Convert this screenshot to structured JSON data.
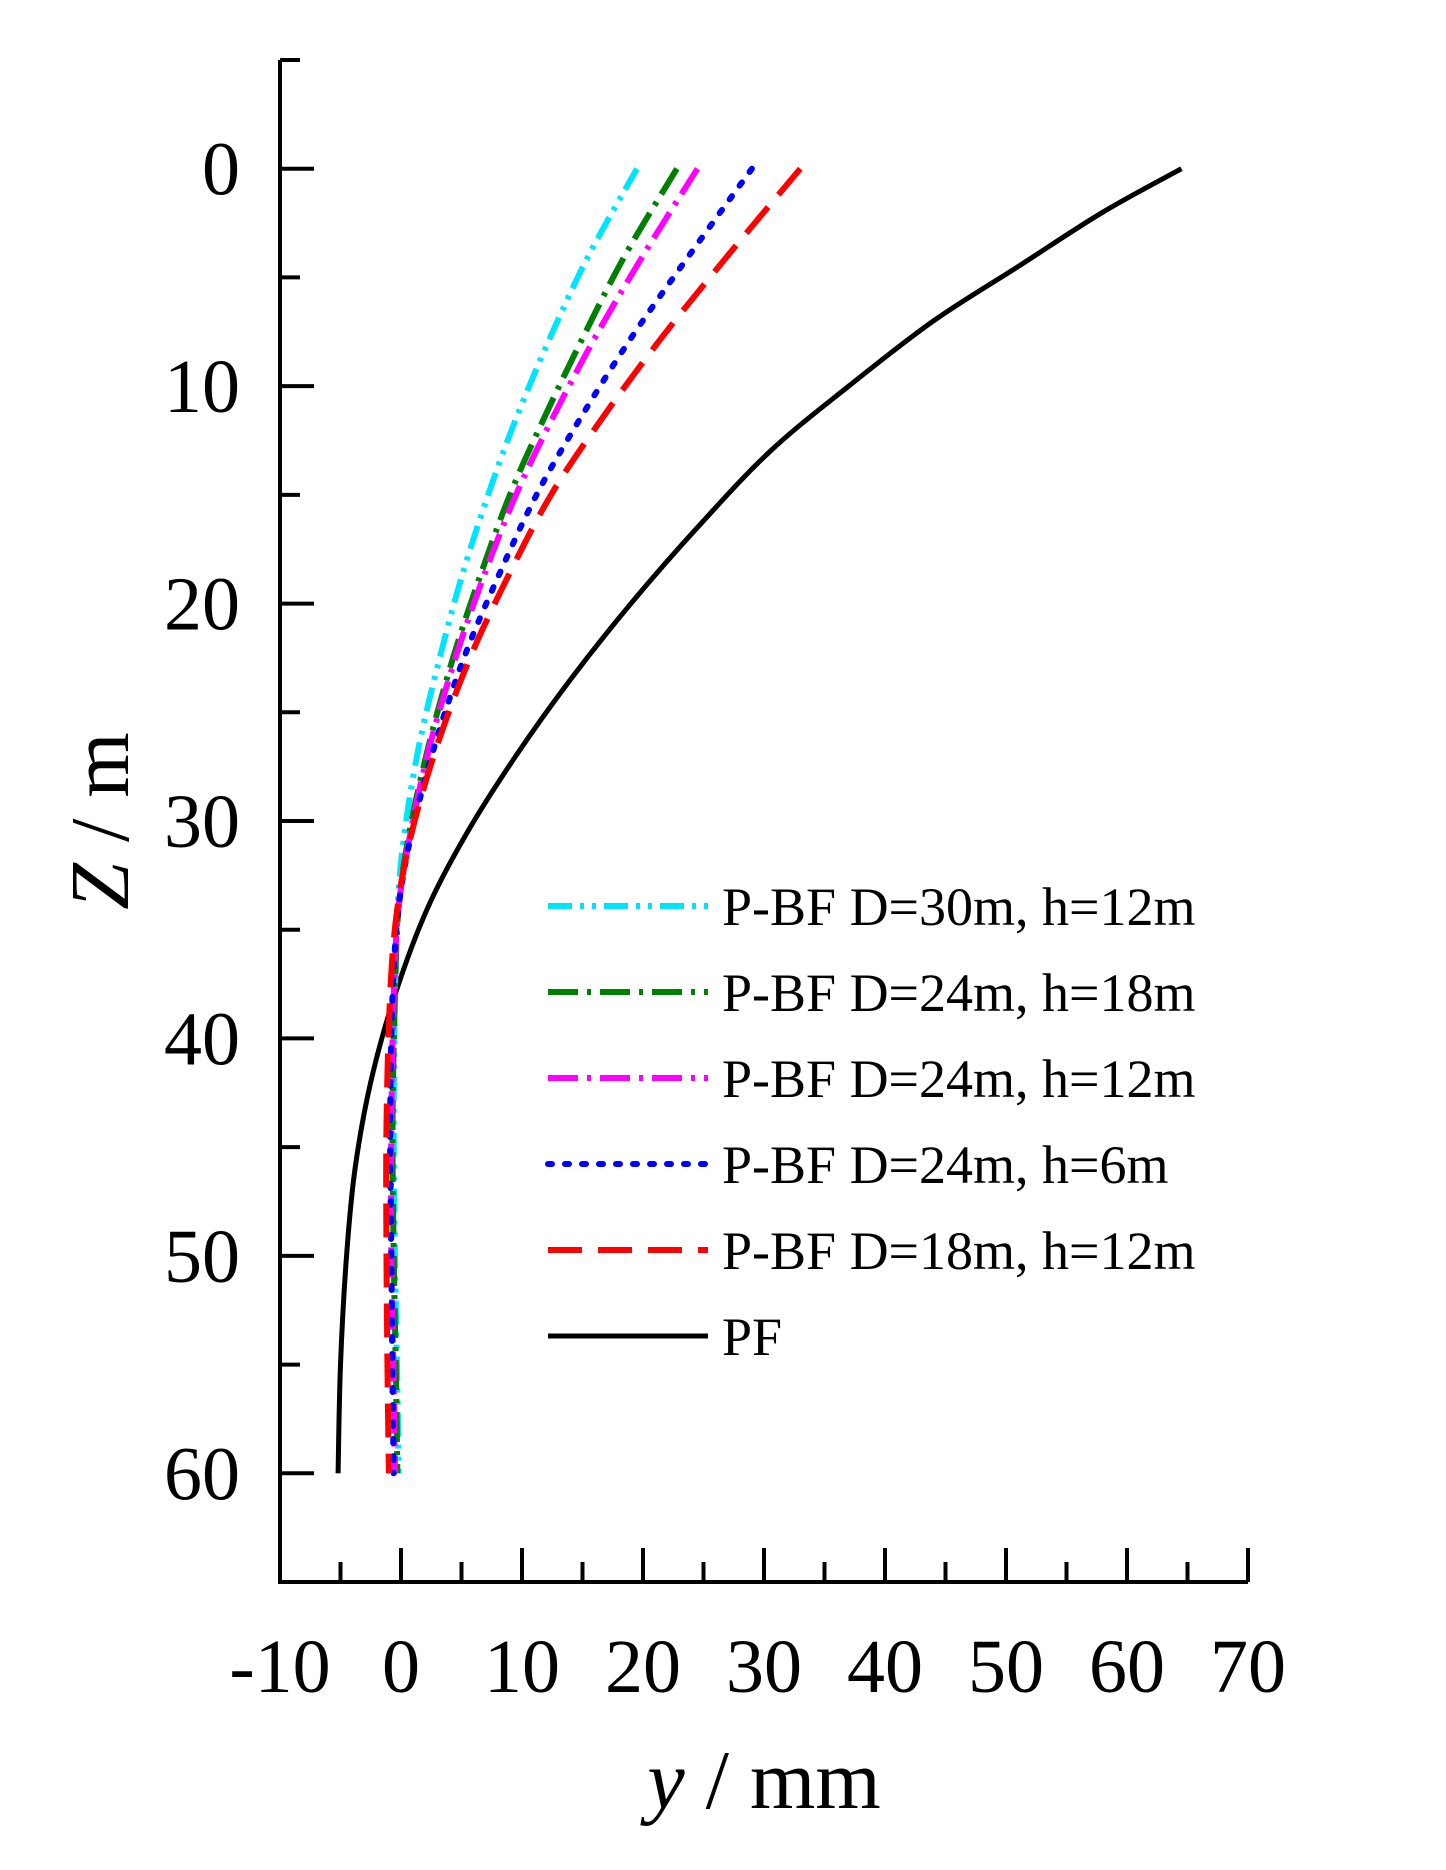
{
  "chart_data": {
    "type": "line",
    "title": "",
    "xlabel": {
      "var": "y",
      "unit": "/ mm"
    },
    "ylabel": {
      "var": "Z",
      "unit": "/ m"
    },
    "xlim": [
      -10,
      70
    ],
    "ylim": [
      65,
      -5
    ],
    "y_inverted": true,
    "grid": false,
    "legend_position": "right-middle",
    "x_ticks": [
      -10,
      0,
      10,
      20,
      30,
      40,
      50,
      60,
      70
    ],
    "x_tick_labels": [
      "-10",
      "0",
      "10",
      "20",
      "30",
      "40",
      "50",
      "60",
      "70"
    ],
    "y_ticks": [
      0,
      10,
      20,
      30,
      40,
      50,
      60
    ],
    "y_tick_labels": [
      "0",
      "10",
      "20",
      "30",
      "40",
      "50",
      "60"
    ],
    "series": [
      {
        "name": "P-BF D=30m, h=12m",
        "color": "#00e5ff",
        "style": "dash-dot-dot",
        "points": [
          [
            19.5,
            0
          ],
          [
            15.5,
            4
          ],
          [
            12.3,
            7.8
          ],
          [
            9.5,
            11.5
          ],
          [
            7.2,
            15
          ],
          [
            5,
            18.8
          ],
          [
            3.2,
            22.5
          ],
          [
            1.5,
            26.5
          ],
          [
            0.3,
            30.5
          ],
          [
            -0.3,
            34
          ],
          [
            -0.5,
            38
          ],
          [
            -0.6,
            44
          ],
          [
            -0.5,
            50
          ],
          [
            -0.3,
            56
          ],
          [
            -0.2,
            60
          ]
        ]
      },
      {
        "name": "P-BF D=24m, h=18m",
        "color": "#008000",
        "style": "dash-dot",
        "points": [
          [
            22.8,
            0
          ],
          [
            18.5,
            4
          ],
          [
            15,
            7.8
          ],
          [
            11.8,
            11.5
          ],
          [
            9,
            15
          ],
          [
            6.5,
            18.8
          ],
          [
            4.3,
            22.5
          ],
          [
            2.3,
            26.5
          ],
          [
            0.7,
            30.5
          ],
          [
            -0.2,
            34
          ],
          [
            -0.5,
            38
          ],
          [
            -0.7,
            44
          ],
          [
            -0.6,
            50
          ],
          [
            -0.4,
            56
          ],
          [
            -0.3,
            60
          ]
        ]
      },
      {
        "name": "P-BF D=24m, h=12m",
        "color": "#ff00ff",
        "style": "dash-dot",
        "points": [
          [
            24.5,
            0
          ],
          [
            20,
            4
          ],
          [
            16,
            7.8
          ],
          [
            12.5,
            11.5
          ],
          [
            9.5,
            15
          ],
          [
            6.8,
            18.8
          ],
          [
            4.5,
            22.5
          ],
          [
            2.4,
            26.5
          ],
          [
            0.8,
            30.5
          ],
          [
            -0.2,
            34
          ],
          [
            -0.6,
            38
          ],
          [
            -0.8,
            44
          ],
          [
            -0.8,
            50
          ],
          [
            -0.6,
            56
          ],
          [
            -0.5,
            60
          ]
        ]
      },
      {
        "name": "P-BF D=24m, h=6m",
        "color": "#0000ff",
        "style": "dotted",
        "points": [
          [
            29,
            0
          ],
          [
            23.8,
            4
          ],
          [
            19,
            7.8
          ],
          [
            14.8,
            11.5
          ],
          [
            11.2,
            15
          ],
          [
            8,
            18.8
          ],
          [
            5.2,
            22.5
          ],
          [
            2.8,
            26.5
          ],
          [
            0.9,
            30.5
          ],
          [
            -0.2,
            34
          ],
          [
            -0.7,
            38
          ],
          [
            -0.9,
            44
          ],
          [
            -0.8,
            50
          ],
          [
            -0.7,
            56
          ],
          [
            -0.6,
            60
          ]
        ]
      },
      {
        "name": "P-BF D=18m, h=12m",
        "color": "#ff0000",
        "style": "dashed",
        "points": [
          [
            33,
            0
          ],
          [
            27,
            4
          ],
          [
            21.5,
            7.8
          ],
          [
            16.6,
            11.5
          ],
          [
            12.4,
            15
          ],
          [
            8.8,
            18.8
          ],
          [
            5.7,
            22.5
          ],
          [
            3,
            26.5
          ],
          [
            0.9,
            30.5
          ],
          [
            -0.3,
            34
          ],
          [
            -0.9,
            38
          ],
          [
            -1.2,
            44
          ],
          [
            -1.2,
            50
          ],
          [
            -1.1,
            56
          ],
          [
            -1,
            60
          ]
        ]
      },
      {
        "name": "PF",
        "color": "#000000",
        "style": "solid",
        "points": [
          [
            64.5,
            0
          ],
          [
            58,
            2
          ],
          [
            51,
            4.5
          ],
          [
            44,
            7
          ],
          [
            37,
            10
          ],
          [
            30.5,
            13
          ],
          [
            24.5,
            16.5
          ],
          [
            19,
            20
          ],
          [
            14,
            23.5
          ],
          [
            9.5,
            27
          ],
          [
            5.5,
            30.5
          ],
          [
            2.2,
            34
          ],
          [
            -0.5,
            38
          ],
          [
            -2.5,
            42
          ],
          [
            -3.8,
            46
          ],
          [
            -4.5,
            50
          ],
          [
            -5,
            55
          ],
          [
            -5.2,
            60
          ]
        ]
      }
    ]
  }
}
